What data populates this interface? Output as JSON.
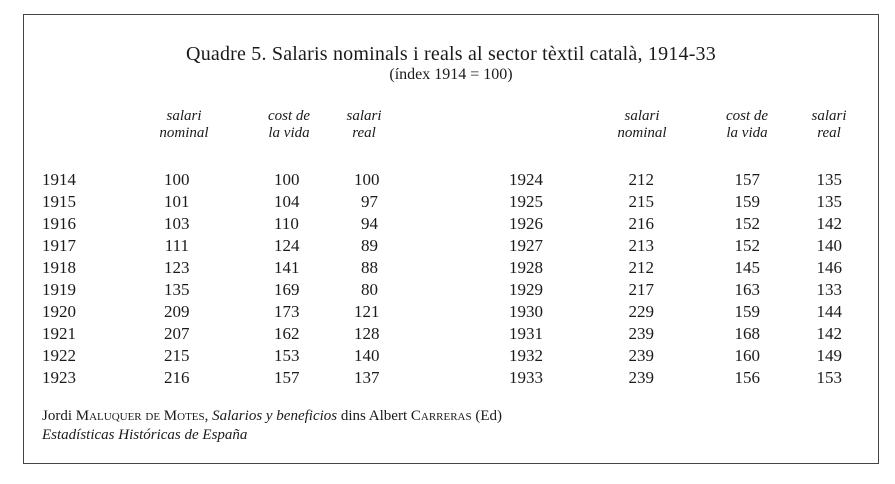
{
  "title": "Quadre 5. Salaris nominals i reals al sector tèxtil català, 1914-33",
  "subtitle": "(índex 1914 = 100)",
  "headers": {
    "nominal": [
      "salari",
      "nominal"
    ],
    "cost": [
      "cost de",
      "la vida"
    ],
    "real": [
      "salari",
      "real"
    ]
  },
  "left_rows": [
    {
      "year": "1914",
      "nominal": "100",
      "cost": "100",
      "real": "100"
    },
    {
      "year": "1915",
      "nominal": "101",
      "cost": "104",
      "real": "97"
    },
    {
      "year": "1916",
      "nominal": "103",
      "cost": "110",
      "real": "94"
    },
    {
      "year": "1917",
      "nominal": "111",
      "cost": "124",
      "real": "89"
    },
    {
      "year": "1918",
      "nominal": "123",
      "cost": "141",
      "real": "88"
    },
    {
      "year": "1919",
      "nominal": "135",
      "cost": "169",
      "real": "80"
    },
    {
      "year": "1920",
      "nominal": "209",
      "cost": "173",
      "real": "121"
    },
    {
      "year": "1921",
      "nominal": "207",
      "cost": "162",
      "real": "128"
    },
    {
      "year": "1922",
      "nominal": "215",
      "cost": "153",
      "real": "140"
    },
    {
      "year": "1923",
      "nominal": "216",
      "cost": "157",
      "real": "137"
    }
  ],
  "right_rows": [
    {
      "year": "1924",
      "nominal": "212",
      "cost": "157",
      "real": "135"
    },
    {
      "year": "1925",
      "nominal": "215",
      "cost": "159",
      "real": "135"
    },
    {
      "year": "1926",
      "nominal": "216",
      "cost": "152",
      "real": "142"
    },
    {
      "year": "1927",
      "nominal": "213",
      "cost": "152",
      "real": "140"
    },
    {
      "year": "1928",
      "nominal": "212",
      "cost": "145",
      "real": "146"
    },
    {
      "year": "1929",
      "nominal": "217",
      "cost": "163",
      "real": "133"
    },
    {
      "year": "1930",
      "nominal": "229",
      "cost": "159",
      "real": "144"
    },
    {
      "year": "1931",
      "nominal": "239",
      "cost": "168",
      "real": "142"
    },
    {
      "year": "1932",
      "nominal": "239",
      "cost": "160",
      "real": "149"
    },
    {
      "year": "1933",
      "nominal": "239",
      "cost": "156",
      "real": "153"
    }
  ],
  "source": {
    "author_first": "Jordi ",
    "author_last": "Maluquer de Motes",
    "sep1": ", ",
    "work": "Salarios y beneficios",
    "mid": " dins Albert ",
    "editor_last": "Carreras",
    "ed": " (Ed)",
    "book": "Estadísticas Históricas de España"
  }
}
